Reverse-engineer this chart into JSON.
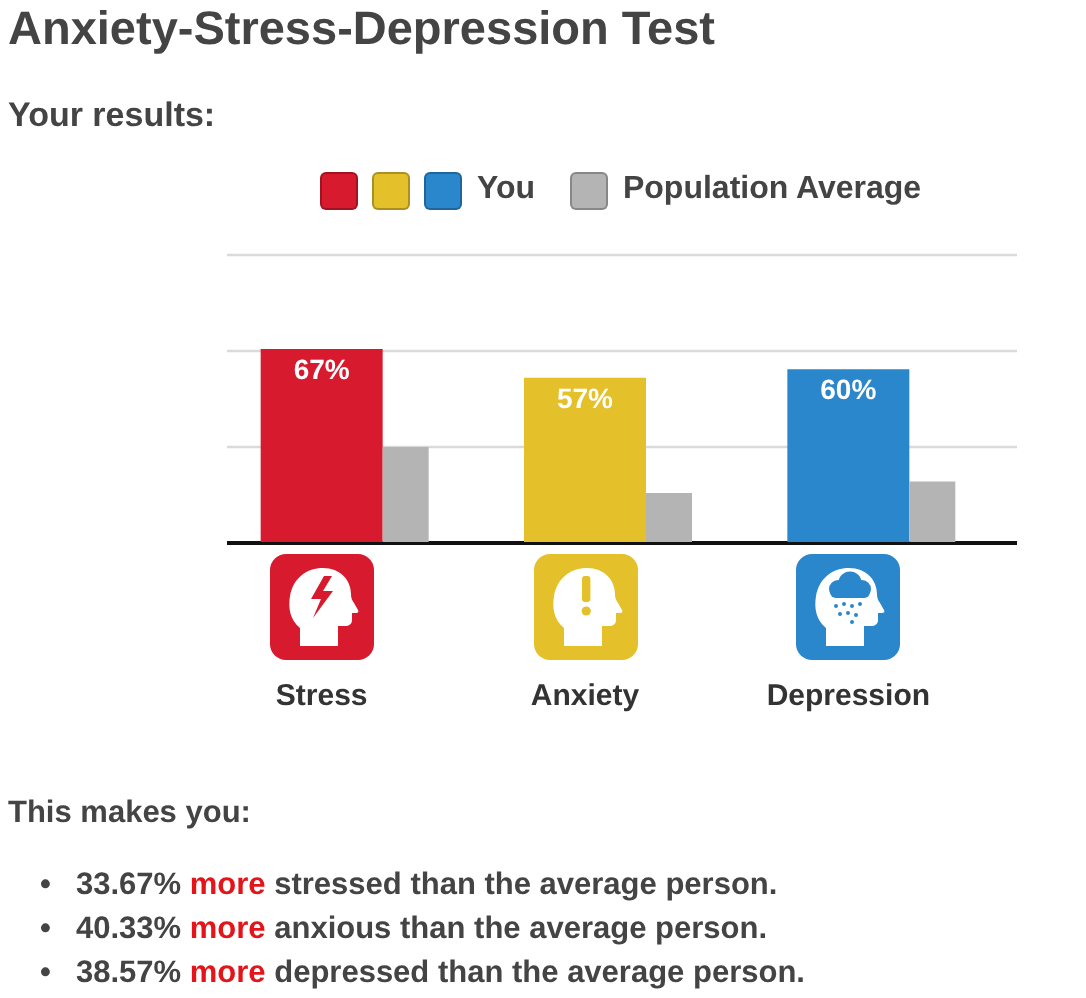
{
  "chart_data": {
    "type": "bar",
    "title": "Anxiety-Stress-Depression Test",
    "subtitle": "Your results:",
    "categories": [
      "Stress",
      "Anxiety",
      "Depression"
    ],
    "series": [
      {
        "name": "You",
        "colors": [
          "#d81a2e",
          "#e4c02a",
          "#2a87cc"
        ],
        "values": [
          67,
          57,
          60
        ],
        "value_labels": [
          "67%",
          "57%",
          "60%"
        ]
      },
      {
        "name": "Population Average",
        "color": "#b4b4b4",
        "values": [
          33,
          17,
          21
        ]
      }
    ],
    "ylim": [
      0,
      100
    ],
    "yticks": [
      {
        "value": 0,
        "label": null
      },
      {
        "value": 33.3,
        "label": null
      },
      {
        "value": 66.7,
        "label": null
      },
      {
        "value": 100,
        "label": null
      }
    ],
    "grid": "y",
    "tick_labels": "x",
    "legend": "top",
    "annotations": [
      "This makes you:",
      "• 33.67% more stressed than the average person.",
      "• 40.33% more anxious than the average person.",
      "• 38.57% more depressed than the average person."
    ]
  }
}
